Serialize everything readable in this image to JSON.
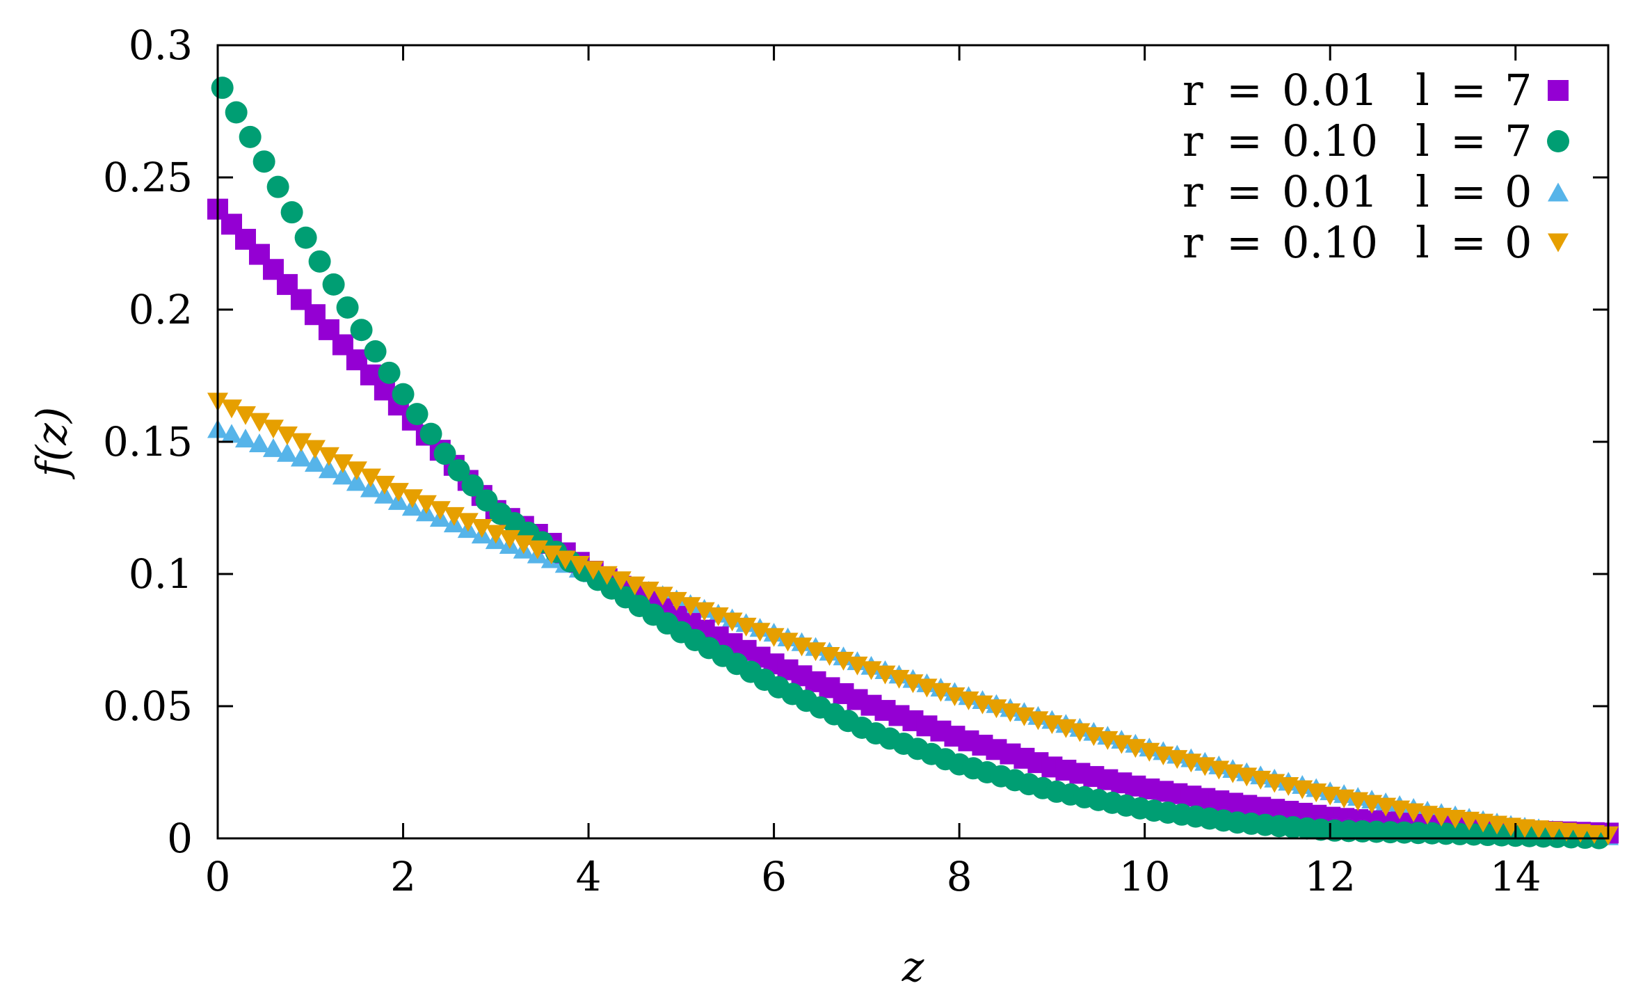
{
  "chart_data": {
    "type": "scatter",
    "title": "",
    "xlabel": "z",
    "ylabel": "f(z)",
    "xlim": [
      0,
      15
    ],
    "ylim": [
      0,
      0.3
    ],
    "xticks": [
      "0",
      "2",
      "4",
      "6",
      "8",
      "10",
      "12",
      "14"
    ],
    "yticks": [
      "0",
      "0.05",
      "0.1",
      "0.15",
      "0.2",
      "0.25",
      "0.3"
    ],
    "grid": false,
    "legend_position": "top-right",
    "series": [
      {
        "name": "r = 0.01  l = 7",
        "legend": {
          "r_label": "r",
          "r_value": "0.01",
          "l_label": "l",
          "l_value": "7"
        },
        "marker": "square",
        "color": "#9400d3",
        "x": [
          0.0,
          1.0,
          2.0,
          3.0,
          3.5,
          4.0,
          5.0,
          6.0,
          7.0,
          8.0,
          9.0,
          10.0,
          11.0,
          12.0,
          13.0,
          14.0,
          15.0
        ],
        "y": [
          0.238,
          0.2,
          0.162,
          0.124,
          0.114,
          0.102,
          0.083,
          0.066,
          0.051,
          0.038,
          0.027,
          0.019,
          0.013,
          0.008,
          0.005,
          0.003,
          0.002
        ]
      },
      {
        "name": "r = 0.10  l = 7",
        "legend": {
          "r_label": "r",
          "r_value": "0.10",
          "l_label": "l",
          "l_value": "7"
        },
        "marker": "circle",
        "color": "#009e73",
        "x": [
          0.0,
          0.5,
          1.0,
          1.5,
          2.0,
          2.5,
          3.0,
          3.5,
          4.0,
          5.0,
          6.0,
          7.0,
          8.0,
          9.0,
          10.0,
          11.0,
          12.0,
          13.0,
          14.0,
          15.0
        ],
        "y": [
          0.287,
          0.256,
          0.224,
          0.195,
          0.168,
          0.143,
          0.124,
          0.112,
          0.1,
          0.078,
          0.058,
          0.041,
          0.028,
          0.018,
          0.011,
          0.006,
          0.003,
          0.002,
          0.001,
          0.0
        ]
      },
      {
        "name": "r = 0.01  l = 0",
        "legend": {
          "r_label": "r",
          "r_value": "0.01",
          "l_label": "l",
          "l_value": "0"
        },
        "marker": "triangle-up",
        "color": "#56b4e9",
        "x": [
          0.0,
          1.0,
          2.0,
          3.0,
          4.0,
          5.0,
          6.0,
          7.0,
          8.0,
          9.0,
          10.0,
          11.0,
          12.0,
          13.0,
          14.0,
          15.0
        ],
        "y": [
          0.155,
          0.143,
          0.127,
          0.113,
          0.101,
          0.09,
          0.078,
          0.066,
          0.055,
          0.045,
          0.035,
          0.026,
          0.018,
          0.011,
          0.005,
          0.001
        ]
      },
      {
        "name": "r = 0.10  l = 0",
        "legend": {
          "r_label": "r",
          "r_value": "0.10",
          "l_label": "l",
          "l_value": "0"
        },
        "marker": "triangle-down",
        "color": "#e69f00",
        "x": [
          0.0,
          1.0,
          2.0,
          3.0,
          4.0,
          5.0,
          6.0,
          7.0,
          8.0,
          9.0,
          10.0,
          11.0,
          12.0,
          13.0,
          14.0,
          15.0
        ],
        "y": [
          0.165,
          0.148,
          0.13,
          0.115,
          0.102,
          0.089,
          0.076,
          0.064,
          0.053,
          0.043,
          0.033,
          0.024,
          0.016,
          0.009,
          0.004,
          0.001
        ]
      }
    ]
  }
}
